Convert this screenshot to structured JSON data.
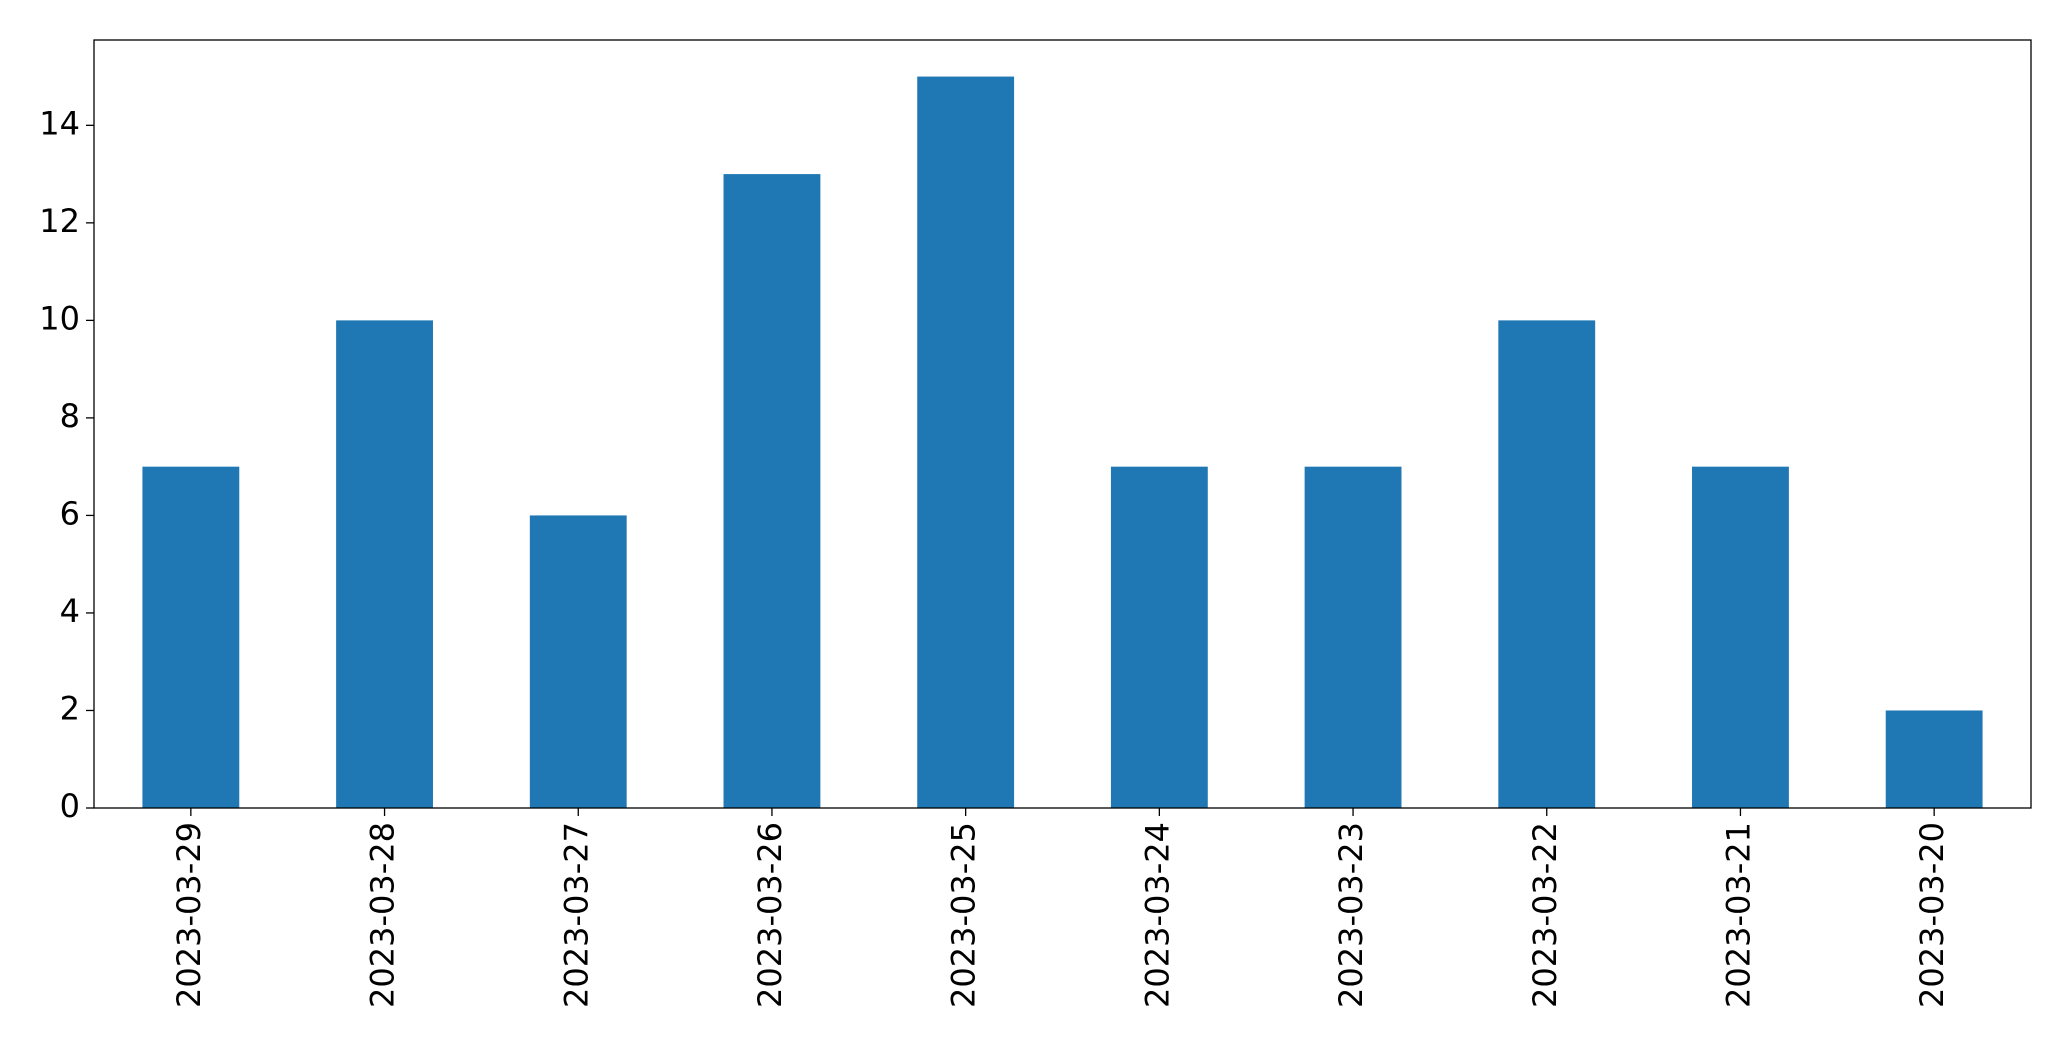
{
  "chart_data": {
    "type": "bar",
    "categories": [
      "2023-03-29",
      "2023-03-28",
      "2023-03-27",
      "2023-03-26",
      "2023-03-25",
      "2023-03-24",
      "2023-03-23",
      "2023-03-22",
      "2023-03-21",
      "2023-03-20"
    ],
    "values": [
      7,
      10,
      6,
      13,
      15,
      7,
      7,
      10,
      7,
      2
    ],
    "color": "#1f77b4",
    "ylim": [
      0,
      15.75
    ],
    "yticks": [
      0,
      2,
      4,
      6,
      8,
      10,
      12,
      14
    ],
    "grid": false
  }
}
